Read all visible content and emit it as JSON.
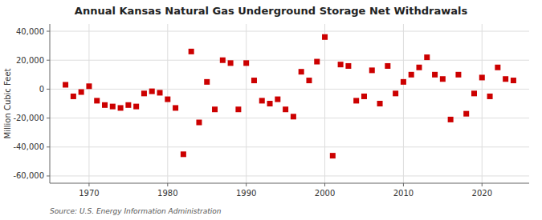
{
  "chart_data": {
    "type": "scatter",
    "title": "Annual Kansas Natural Gas Underground Storage Net Withdrawals",
    "y_label": "Million Cubic Feet",
    "annotations": [
      "Source: U.S. Energy Information Administration"
    ],
    "color": "#cc0000",
    "marker": "square",
    "grid": true,
    "xlim": [
      1965,
      2026
    ],
    "xticks": [
      1970,
      1980,
      1990,
      2000,
      2010,
      2020
    ],
    "ylim": [
      -65000,
      45000
    ],
    "yticks": [
      {
        "value": -60000,
        "label": "-60,000"
      },
      {
        "value": -40000,
        "label": "-40,000"
      },
      {
        "value": -20000,
        "label": "-20,000"
      },
      0,
      {
        "value": 20000,
        "label": "20,000"
      },
      {
        "value": 40000,
        "label": "40,000"
      }
    ],
    "x": [
      1967,
      1968,
      1969,
      1970,
      1971,
      1972,
      1973,
      1974,
      1975,
      1976,
      1977,
      1978,
      1979,
      1980,
      1981,
      1982,
      1983,
      1984,
      1985,
      1986,
      1987,
      1988,
      1989,
      1990,
      1991,
      1992,
      1993,
      1994,
      1995,
      1996,
      1997,
      1998,
      1999,
      2000,
      2001,
      2002,
      2003,
      2004,
      2005,
      2006,
      2007,
      2008,
      2009,
      2010,
      2011,
      2012,
      2013,
      2014,
      2015,
      2016,
      2017,
      2018,
      2019,
      2020,
      2021,
      2022,
      2023,
      2024
    ],
    "values": [
      3000,
      -5000,
      -2000,
      2000,
      -8000,
      -11000,
      -12000,
      -13000,
      -11000,
      -12000,
      -3000,
      -1500,
      -2500,
      -7000,
      -13000,
      -45000,
      26000,
      -23000,
      5000,
      -14000,
      20000,
      18000,
      -14000,
      18000,
      6000,
      -8000,
      -10000,
      -7000,
      -14000,
      -19000,
      12000,
      6000,
      19000,
      36000,
      -46000,
      17000,
      16000,
      -8000,
      -5000,
      13000,
      -10000,
      16000,
      -3000,
      5000,
      10000,
      15000,
      22000,
      10000,
      7000,
      -21000,
      10000,
      -17000,
      -3000,
      8000,
      -5000,
      15000,
      7000,
      6000
    ]
  }
}
